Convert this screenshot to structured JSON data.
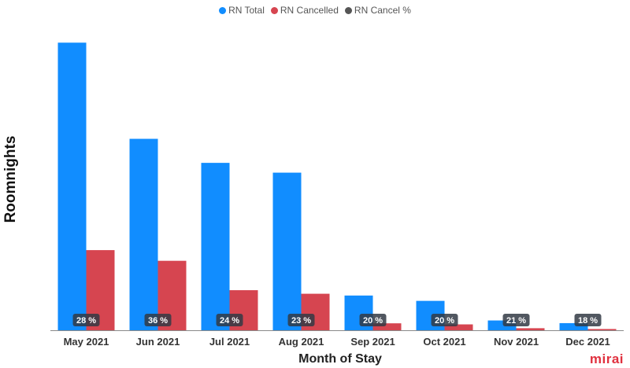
{
  "chart_data": {
    "type": "bar",
    "xlabel": "Month of Stay",
    "ylabel": "Roomnights",
    "categories": [
      "May 2021",
      "Jun 2021",
      "Jul 2021",
      "Aug 2021",
      "Sep 2021",
      "Oct 2021",
      "Nov 2021",
      "Dec 2021"
    ],
    "series": [
      {
        "name": "RN Total",
        "color": "#118dff",
        "values": [
          3230,
          2150,
          1880,
          1770,
          390,
          330,
          110,
          80
        ]
      },
      {
        "name": "RN Cancelled",
        "color": "#d64550",
        "values": [
          900,
          780,
          450,
          410,
          78,
          66,
          23,
          14
        ]
      }
    ],
    "percent_series": {
      "name": "RN Cancel %",
      "color": "#555555",
      "labels": [
        "28 %",
        "36 %",
        "24 %",
        "23 %",
        "20 %",
        "20 %",
        "21 %",
        "18 %"
      ]
    },
    "ylim": [
      0,
      3400
    ],
    "legend_position": "top-center",
    "grid": false
  },
  "brand": {
    "logo_text": "mirai",
    "color": "#e0313f"
  }
}
